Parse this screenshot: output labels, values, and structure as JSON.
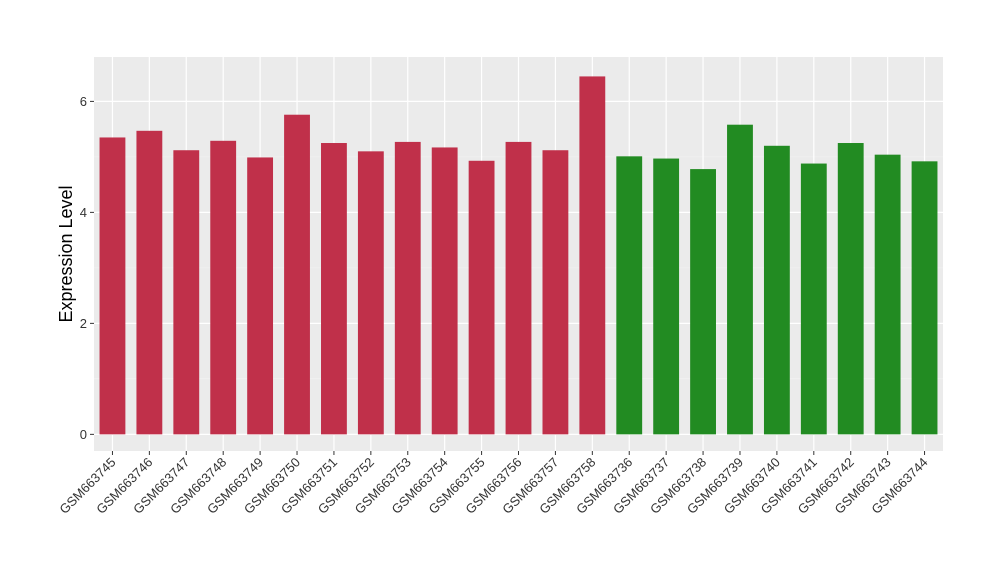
{
  "chart_data": {
    "type": "bar",
    "title": "",
    "xlabel": "",
    "ylabel": "Expression Level",
    "ylim": [
      -0.3,
      6.8
    ],
    "yticks": [
      0,
      2,
      4,
      6
    ],
    "grid": true,
    "categories": [
      "GSM663745",
      "GSM663746",
      "GSM663747",
      "GSM663748",
      "GSM663749",
      "GSM663750",
      "GSM663751",
      "GSM663752",
      "GSM663753",
      "GSM663754",
      "GSM663755",
      "GSM663756",
      "GSM663757",
      "GSM663758",
      "GSM663736",
      "GSM663737",
      "GSM663738",
      "GSM663739",
      "GSM663740",
      "GSM663741",
      "GSM663742",
      "GSM663743",
      "GSM663744"
    ],
    "values": [
      5.35,
      5.47,
      5.12,
      5.29,
      4.99,
      5.76,
      5.25,
      5.1,
      5.27,
      5.17,
      4.93,
      5.27,
      5.12,
      6.45,
      5.01,
      4.97,
      4.78,
      5.58,
      5.2,
      4.88,
      5.25,
      5.04,
      4.92
    ],
    "groups": [
      "red",
      "red",
      "red",
      "red",
      "red",
      "red",
      "red",
      "red",
      "red",
      "red",
      "red",
      "red",
      "red",
      "red",
      "green",
      "green",
      "green",
      "green",
      "green",
      "green",
      "green",
      "green",
      "green"
    ]
  },
  "colors": {
    "red": "#C0304A",
    "green": "#228B22",
    "panel_bg": "#EBEBEB",
    "grid_major": "#FFFFFF",
    "grid_minor": "#F5F5F5"
  }
}
